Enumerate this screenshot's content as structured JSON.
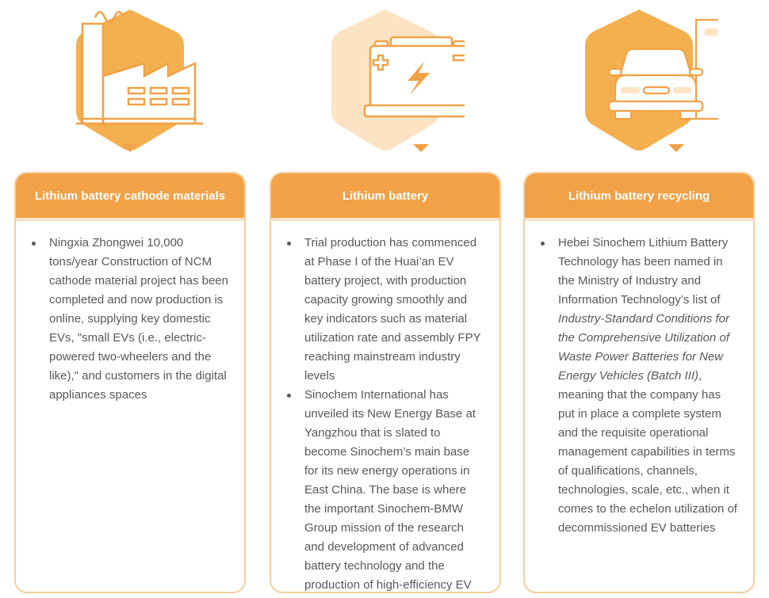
{
  "colors": {
    "accent": "#f2a146",
    "hex_fill": "#f4b04f",
    "hex_pale": "#fce3c4",
    "border": "#f7cf9f",
    "text": "#58585a"
  },
  "columns": [
    {
      "icon": "factory-icon",
      "title": "Lithium battery cathode materials",
      "items": [
        {
          "text": "Ningxia Zhongwei 10,000 tons/year Construction of NCM cathode material project has been completed and now production is online, supplying key domestic EVs, \"small EVs (i.e., electric-powered two-wheelers and the like),\" and customers in the digital appliances spaces"
        }
      ]
    },
    {
      "icon": "battery-icon",
      "title": "Lithium battery",
      "items": [
        {
          "text": "Trial production has commenced at Phase I of the Huai’an EV battery project, with production capacity growing smoothly and key indicators such as material utilization rate and assembly FPY reaching mainstream industry levels"
        },
        {
          "text": "Sinochem International has unveiled its New Energy Base at Yangzhou that is slated to become Sinochem’s main base for its new energy operations in East China. The base is where the important Sinochem-BMW Group mission of the research and development of advanced battery technology and the production of high-efficiency EV batteries will take place"
        }
      ]
    },
    {
      "icon": "car-charging-icon",
      "title": "Lithium battery recycling",
      "items": [
        {
          "pre": "Hebei Sinochem Lithium Battery Technology has been named in the Ministry of Industry and Information Technology’s list of ",
          "italic": "Industry-Standard Conditions for the Comprehensive Utilization of Waste Power Batteries for New Energy Vehicles (Batch III)",
          "post": ", meaning that the company has put in place a complete system and the requisite operational management capabilities in terms of qualifications, channels, technologies, scale, etc., when it comes to the echelon utilization of decommissioned EV batteries"
        }
      ]
    }
  ]
}
